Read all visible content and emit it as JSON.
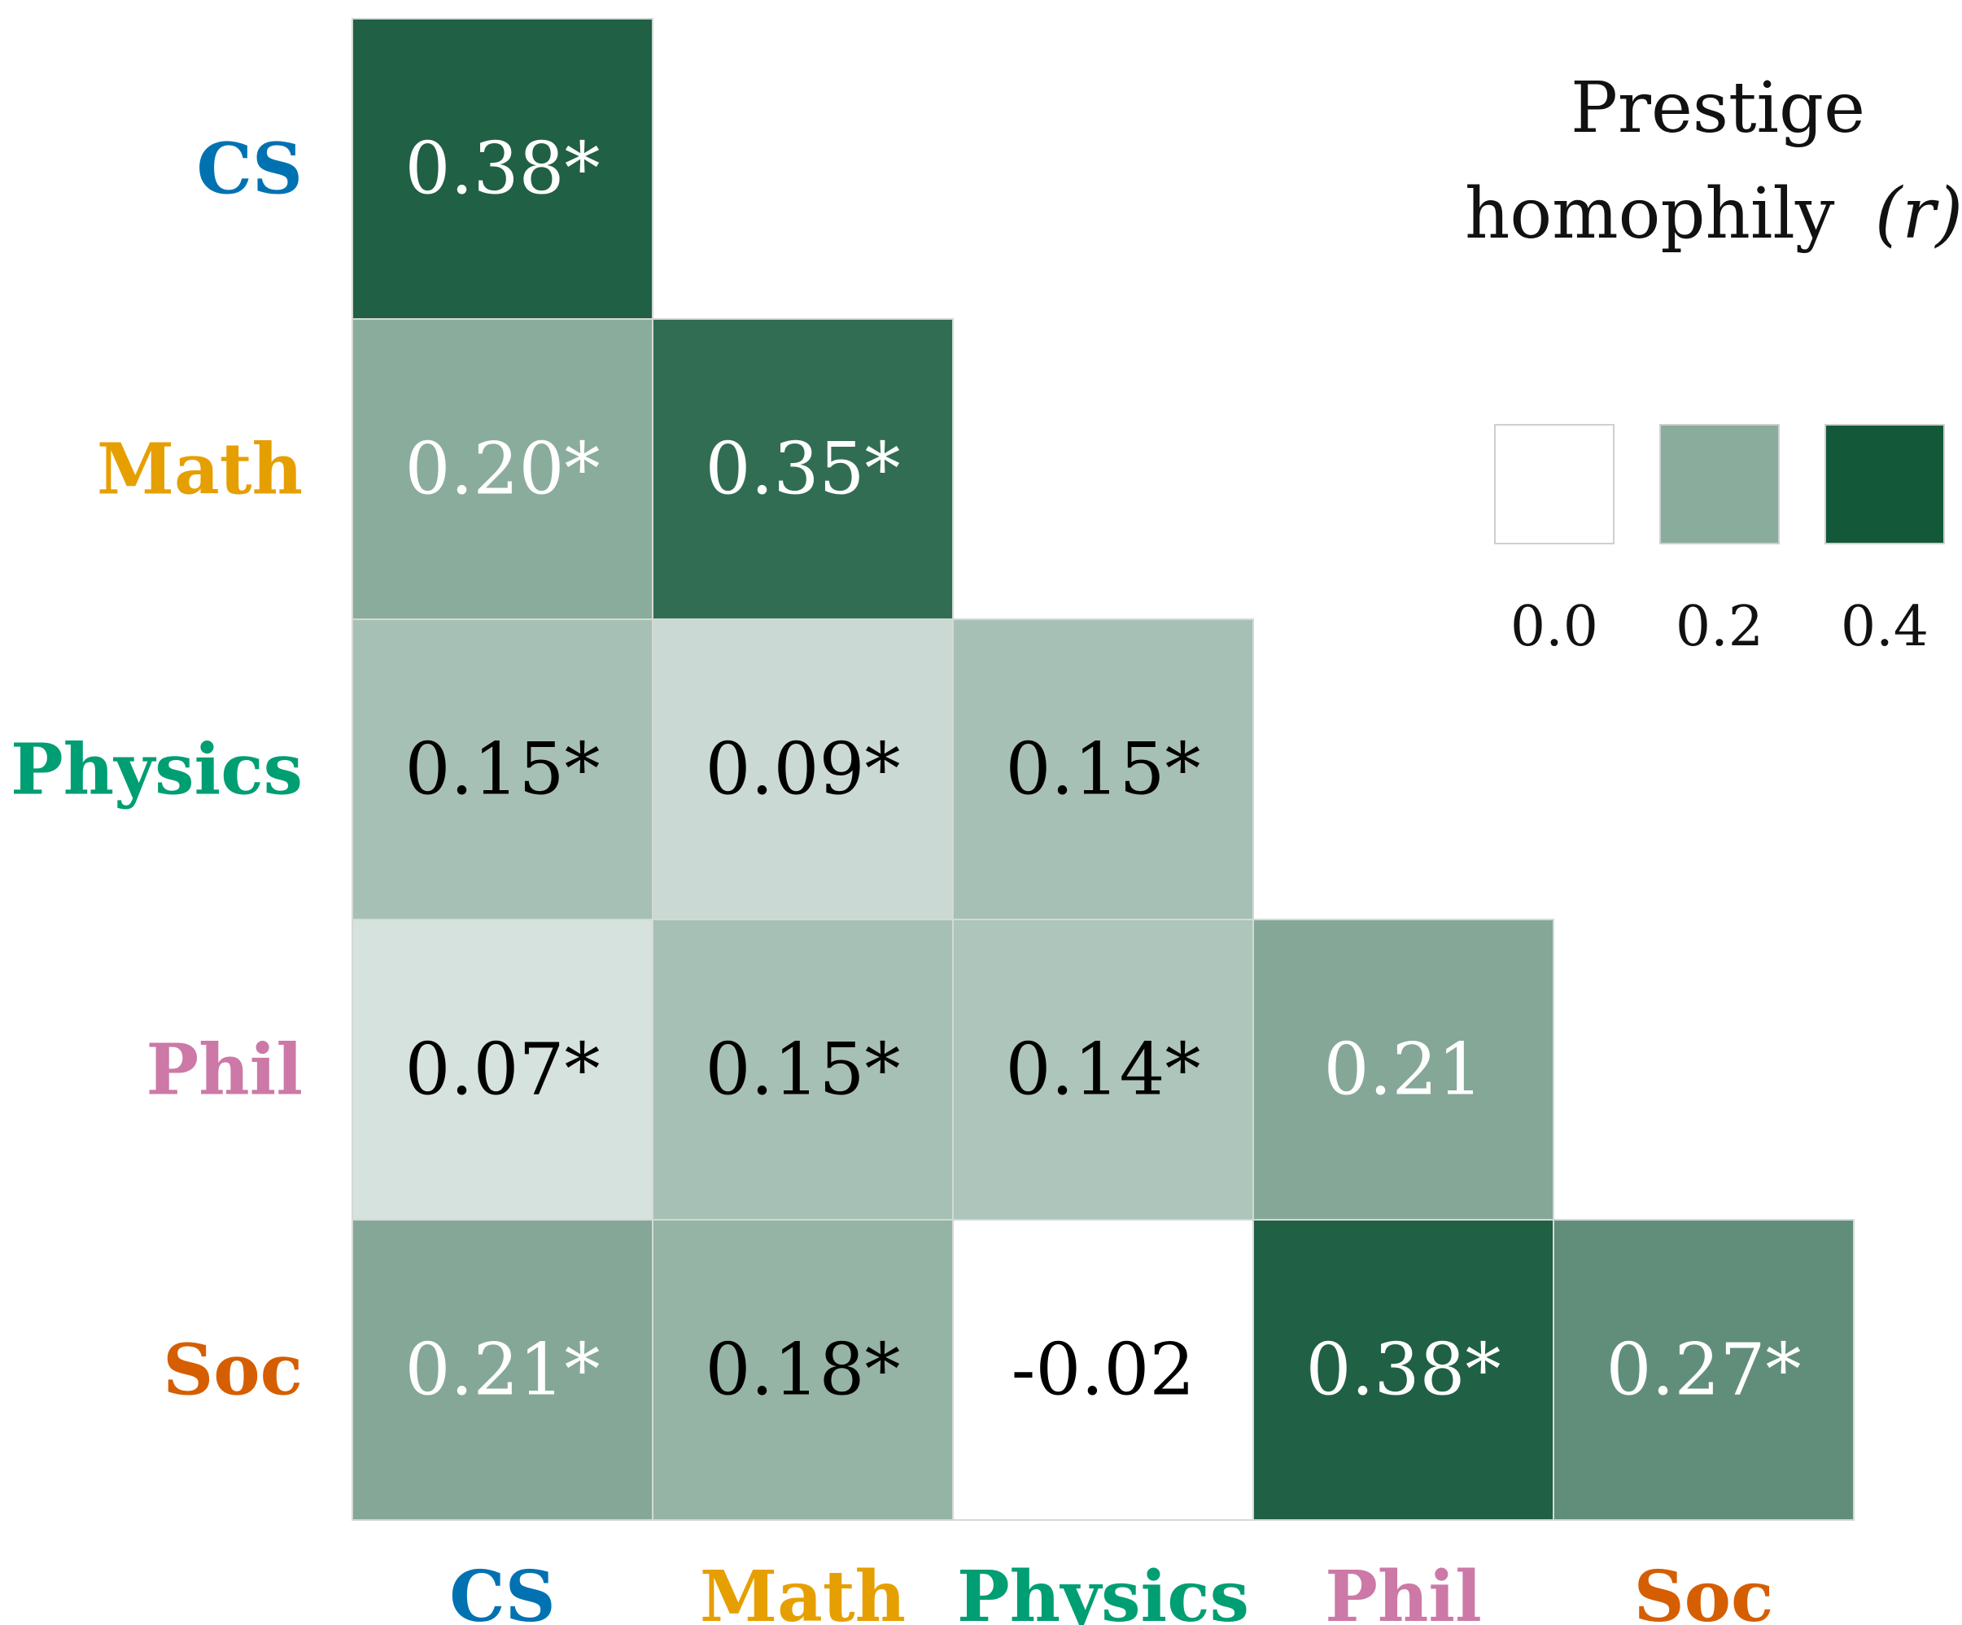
{
  "chart_data": {
    "type": "heatmap",
    "layout": "lower-triangular",
    "rows": [
      "CS",
      "Math",
      "Physics",
      "Phil",
      "Soc"
    ],
    "columns": [
      "CS",
      "Math",
      "Physics",
      "Phil",
      "Soc"
    ],
    "label_colors": {
      "CS": "#0072b2",
      "Math": "#e69f00",
      "Physics": "#009e73",
      "Phil": "#cc79a7",
      "Soc": "#d55e00"
    },
    "cells": [
      {
        "row": "CS",
        "col": "CS",
        "value": 0.38,
        "label": "0.38*"
      },
      {
        "row": "Math",
        "col": "CS",
        "value": 0.2,
        "label": "0.20*"
      },
      {
        "row": "Math",
        "col": "Math",
        "value": 0.35,
        "label": "0.35*"
      },
      {
        "row": "Physics",
        "col": "CS",
        "value": 0.15,
        "label": "0.15*"
      },
      {
        "row": "Physics",
        "col": "Math",
        "value": 0.09,
        "label": "0.09*"
      },
      {
        "row": "Physics",
        "col": "Physics",
        "value": 0.15,
        "label": "0.15*"
      },
      {
        "row": "Phil",
        "col": "CS",
        "value": 0.07,
        "label": "0.07*"
      },
      {
        "row": "Phil",
        "col": "Math",
        "value": 0.15,
        "label": "0.15*"
      },
      {
        "row": "Phil",
        "col": "Physics",
        "value": 0.14,
        "label": "0.14*"
      },
      {
        "row": "Phil",
        "col": "Phil",
        "value": 0.21,
        "label": "0.21"
      },
      {
        "row": "Soc",
        "col": "CS",
        "value": 0.21,
        "label": "0.21*"
      },
      {
        "row": "Soc",
        "col": "Math",
        "value": 0.18,
        "label": "0.18*"
      },
      {
        "row": "Soc",
        "col": "Physics",
        "value": -0.02,
        "label": "-0.02"
      },
      {
        "row": "Soc",
        "col": "Phil",
        "value": 0.38,
        "label": "0.38*"
      },
      {
        "row": "Soc",
        "col": "Soc",
        "value": 0.27,
        "label": "0.27*"
      }
    ],
    "colormap": {
      "min_color": "#ffffff",
      "max_color": "#14583a",
      "vmin": 0.0,
      "vmax": 0.4
    },
    "legend": {
      "title_line1": "Prestige",
      "title_line2": "homophily",
      "title_symbol": "(r)",
      "ticks": [
        {
          "value": 0.0,
          "label": "0.0"
        },
        {
          "value": 0.2,
          "label": "0.2"
        },
        {
          "value": 0.4,
          "label": "0.4"
        }
      ],
      "placement": "top-right"
    }
  }
}
